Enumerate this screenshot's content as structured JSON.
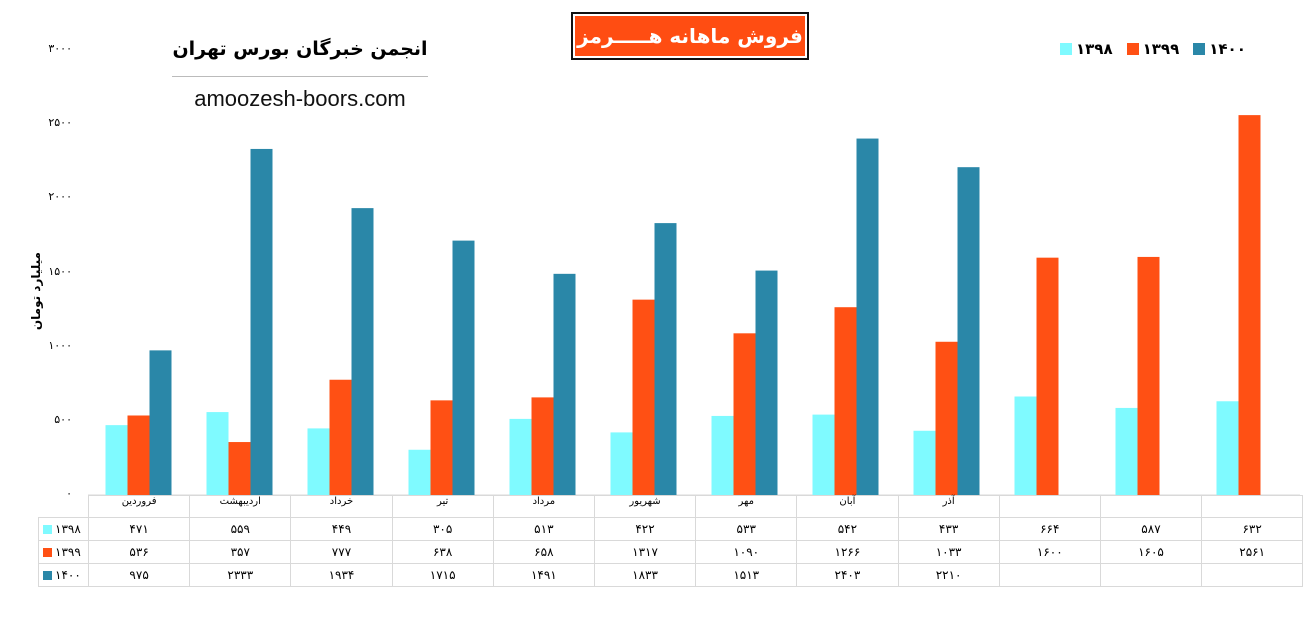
{
  "title": "فروش ماهانه هـــــرمز",
  "org": "انجمن خبرگان بورس تهران",
  "site": "amoozesh-boors.com",
  "colors": {
    "1398": "#7ffaff",
    "1399": "#ff5014",
    "1400": "#2a87a8"
  },
  "chart_data": {
    "type": "bar",
    "ylabel": "میلیارد تومان",
    "ylim": [
      0,
      3000
    ],
    "yticks": [
      "۰",
      "۵۰۰",
      "۱۰۰۰",
      "۱۵۰۰",
      "۲۰۰۰",
      "۲۵۰۰",
      "۳۰۰۰"
    ],
    "categories": [
      "فروردین",
      "اردیبهشت",
      "خرداد",
      "تیر",
      "مرداد",
      "شهریور",
      "مهر",
      "آبان",
      "آذر",
      "",
      "",
      ""
    ],
    "series": [
      {
        "name": "۱۳۹۸",
        "values": [
          471,
          559,
          449,
          305,
          513,
          422,
          533,
          542,
          433,
          664,
          587,
          632
        ],
        "labels": [
          "۴۷۱",
          "۵۵۹",
          "۴۴۹",
          "۳۰۵",
          "۵۱۳",
          "۴۲۲",
          "۵۳۳",
          "۵۴۲",
          "۴۳۳",
          "۶۶۴",
          "۵۸۷",
          "۶۳۲"
        ]
      },
      {
        "name": "۱۳۹۹",
        "values": [
          536,
          357,
          777,
          638,
          658,
          1317,
          1090,
          1266,
          1033,
          1600,
          1605,
          2561
        ],
        "labels": [
          "۵۳۶",
          "۳۵۷",
          "۷۷۷",
          "۶۳۸",
          "۶۵۸",
          "۱۳۱۷",
          "۱۰۹۰",
          "۱۲۶۶",
          "۱۰۳۳",
          "۱۶۰۰",
          "۱۶۰۵",
          "۲۵۶۱"
        ]
      },
      {
        "name": "۱۴۰۰",
        "values": [
          975,
          2333,
          1934,
          1715,
          1491,
          1833,
          1513,
          2403,
          2210,
          null,
          null,
          null
        ],
        "labels": [
          "۹۷۵",
          "۲۳۳۳",
          "۱۹۳۴",
          "۱۷۱۵",
          "۱۴۹۱",
          "۱۸۳۳",
          "۱۵۱۳",
          "۲۴۰۳",
          "۲۲۱۰",
          "",
          "",
          ""
        ]
      }
    ]
  }
}
